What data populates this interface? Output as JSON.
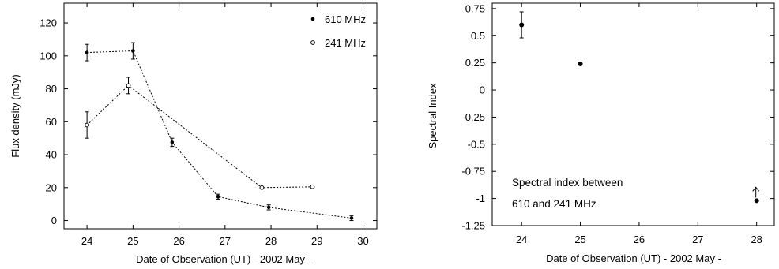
{
  "chart_data": [
    {
      "type": "scatter",
      "xlabel": "Date of Observation (UT) - 2002 May -",
      "ylabel": "Flux density (mJy)",
      "xlim": [
        23.5,
        30.3
      ],
      "ylim": [
        -5,
        132
      ],
      "x_ticks": [
        24,
        25,
        26,
        27,
        28,
        29,
        30
      ],
      "y_ticks": [
        0,
        20,
        40,
        60,
        80,
        100,
        120
      ],
      "legend_position": "top-right",
      "grid": false,
      "series": [
        {
          "name": "610 MHz",
          "marker": "filled",
          "connected": "dotted",
          "points": [
            {
              "x": 24.0,
              "y": 102,
              "err": 5
            },
            {
              "x": 25.0,
              "y": 103,
              "err": 5
            },
            {
              "x": 25.85,
              "y": 47.5,
              "err": 2.5
            },
            {
              "x": 26.85,
              "y": 14.5,
              "err": 1.5
            },
            {
              "x": 27.95,
              "y": 8,
              "err": 1.5
            },
            {
              "x": 29.75,
              "y": 1.5,
              "err": 1.5
            }
          ]
        },
        {
          "name": "241 MHz",
          "marker": "open",
          "connected": "dotted",
          "points": [
            {
              "x": 24.0,
              "y": 58,
              "err": 8
            },
            {
              "x": 24.9,
              "y": 82,
              "err": 5
            },
            {
              "x": 27.8,
              "y": 20,
              "err": 0
            },
            {
              "x": 28.9,
              "y": 20.5,
              "err": 0
            }
          ]
        }
      ]
    },
    {
      "type": "scatter",
      "xlabel": "Date of Observation (UT) - 2002 May -",
      "ylabel": "Spectral Index",
      "xlim": [
        23.5,
        28.3
      ],
      "ylim": [
        -1.25,
        0.8
      ],
      "x_ticks": [
        24,
        25,
        26,
        27,
        28
      ],
      "y_ticks": [
        0.75,
        0.5,
        0.25,
        0,
        -0.25,
        -0.5,
        -0.75,
        -1,
        -1.25
      ],
      "y_tick_labels": [
        "0.75",
        "0.5",
        "0.25",
        "0",
        "-0.25",
        "-0.5",
        "-0.75",
        "-1",
        "-1.25"
      ],
      "grid": false,
      "annotation": [
        "Spectral index between",
        "610 and 241 MHz"
      ],
      "series": [
        {
          "marker": "filled",
          "points": [
            {
              "x": 24.0,
              "y": 0.6,
              "err": 0.12
            },
            {
              "x": 25.0,
              "y": 0.24,
              "err": 0
            },
            {
              "x": 28.0,
              "y": -1.02,
              "err": 0,
              "lower_limit": true
            }
          ]
        }
      ]
    }
  ]
}
